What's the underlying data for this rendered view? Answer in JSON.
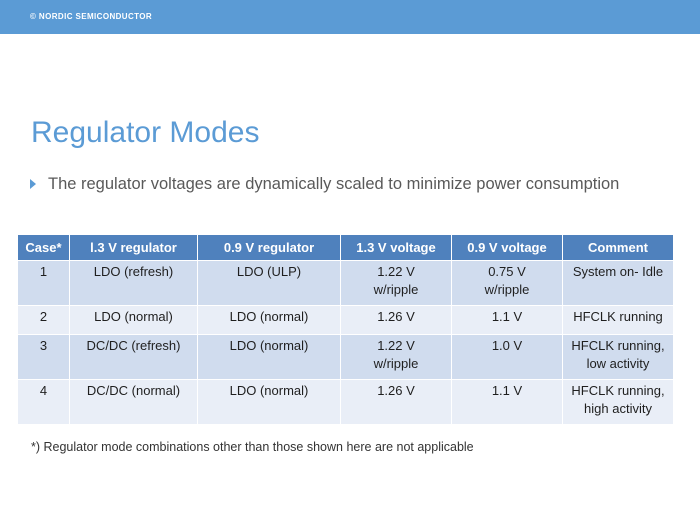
{
  "header": {
    "brand": "© NORDIC SEMICONDUCTOR"
  },
  "title": "Regulator Modes",
  "bullet": "The regulator voltages are dynamically scaled to minimize power consumption",
  "table": {
    "headers": [
      "Case*",
      "l.3 V regulator",
      "0.9 V regulator",
      "1.3 V voltage",
      "0.9 V voltage",
      "Comment"
    ],
    "rows": [
      {
        "case": "1",
        "reg13": "LDO (refresh)",
        "reg09": "LDO (ULP)",
        "v13": [
          "1.22 V",
          "w/ripple"
        ],
        "v09": [
          "0.75 V",
          "w/ripple"
        ],
        "comment": [
          "System on- Idle"
        ]
      },
      {
        "case": "2",
        "reg13": "LDO (normal)",
        "reg09": "LDO (normal)",
        "v13": [
          "1.26 V"
        ],
        "v09": [
          "1.1 V"
        ],
        "comment": [
          "HFCLK running"
        ]
      },
      {
        "case": "3",
        "reg13": "DC/DC (refresh)",
        "reg09": "LDO (normal)",
        "v13": [
          "1.22 V",
          "w/ripple"
        ],
        "v09": [
          "1.0 V"
        ],
        "comment": [
          "HFCLK running,",
          "low activity"
        ]
      },
      {
        "case": "4",
        "reg13": "DC/DC (normal)",
        "reg09": "LDO (normal)",
        "v13": [
          "1.26 V"
        ],
        "v09": [
          "1.1 V"
        ],
        "comment": [
          "HFCLK running,",
          "high activity"
        ]
      }
    ]
  },
  "footnote": "*) Regulator mode combinations other than those shown here are not applicable",
  "colors": {
    "accent": "#5b9bd5",
    "table_header": "#4f81bd",
    "row_dark": "#d0dcee",
    "row_light": "#e9eef7"
  }
}
